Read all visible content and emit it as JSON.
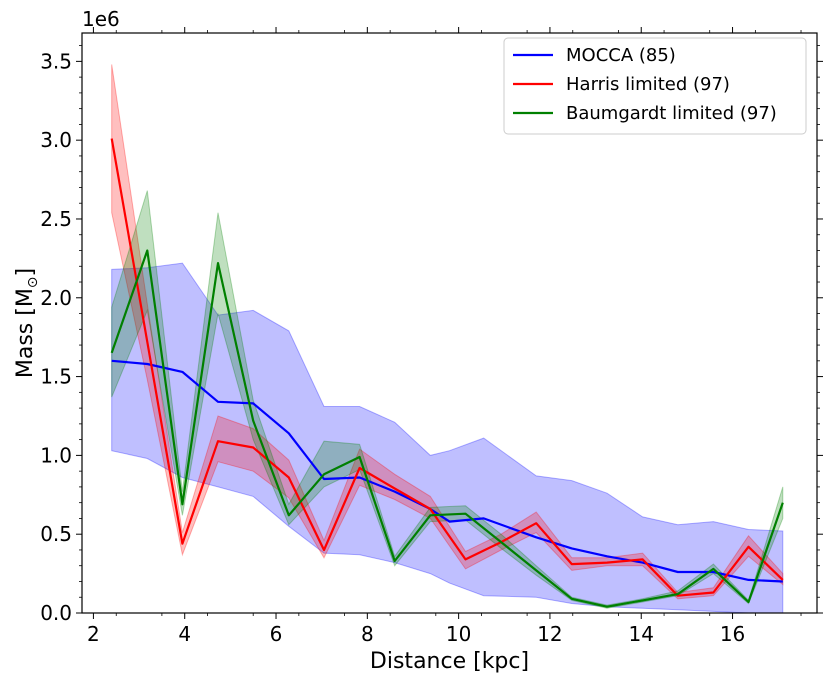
{
  "chart_data": {
    "type": "line",
    "xlabel": "Distance [kpc]",
    "ylabel_main": "Mass [M",
    "ylabel_sub": "⊙",
    "ylabel_close": "]",
    "y_offset_label": "1e6",
    "xlim": [
      1.75,
      17.85
    ],
    "ylim": [
      0,
      3.68
    ],
    "xticks": [
      2,
      4,
      6,
      8,
      10,
      12,
      14,
      16
    ],
    "xtick_labels": [
      "2",
      "4",
      "6",
      "8",
      "10",
      "12",
      "14",
      "16"
    ],
    "yticks": [
      0,
      0.5,
      1.0,
      1.5,
      2.0,
      2.5,
      3.0,
      3.5
    ],
    "ytick_labels": [
      "0.0",
      "0.5",
      "1.0",
      "1.5",
      "2.0",
      "2.5",
      "3.0",
      "3.5"
    ],
    "legend_position": "top-right",
    "series": [
      {
        "name": "MOCCA (85)",
        "color": "#0000ff",
        "band_color": "#0000ff",
        "band_opacity": 0.25,
        "x": [
          2.4,
          3.18,
          3.95,
          4.73,
          5.5,
          6.28,
          7.05,
          7.83,
          8.6,
          9.38,
          9.8,
          10.55,
          11.7,
          12.48,
          13.25,
          14.03,
          14.8,
          15.58,
          16.35,
          17.1
        ],
        "y": [
          1.6,
          1.58,
          1.53,
          1.34,
          1.33,
          1.14,
          0.85,
          0.86,
          0.77,
          0.66,
          0.58,
          0.6,
          0.48,
          0.41,
          0.36,
          0.32,
          0.26,
          0.26,
          0.21,
          0.2
        ],
        "lower": [
          1.03,
          0.98,
          0.86,
          0.8,
          0.74,
          0.55,
          0.38,
          0.37,
          0.32,
          0.25,
          0.19,
          0.11,
          0.1,
          0.06,
          0.04,
          0.03,
          0.02,
          0.01,
          0.0,
          0.0
        ],
        "upper": [
          2.18,
          2.19,
          2.22,
          1.89,
          1.92,
          1.79,
          1.31,
          1.31,
          1.21,
          1.0,
          1.03,
          1.11,
          0.87,
          0.84,
          0.76,
          0.61,
          0.56,
          0.58,
          0.53,
          0.52
        ]
      },
      {
        "name": "Harris limited (97)",
        "color": "#ff0000",
        "band_color": "#ff0000",
        "band_opacity": 0.25,
        "x": [
          2.4,
          3.18,
          3.95,
          4.73,
          5.5,
          6.28,
          7.05,
          7.83,
          8.6,
          9.38,
          10.15,
          10.93,
          11.7,
          12.48,
          13.25,
          14.03,
          14.8,
          15.58,
          16.35,
          17.1
        ],
        "y": [
          3.01,
          1.72,
          0.44,
          1.09,
          1.05,
          0.86,
          0.4,
          0.92,
          0.79,
          0.66,
          0.34,
          0.45,
          0.57,
          0.31,
          0.32,
          0.34,
          0.11,
          0.13,
          0.42,
          0.21
        ],
        "lower": [
          2.54,
          1.48,
          0.37,
          0.96,
          0.9,
          0.73,
          0.35,
          0.81,
          0.72,
          0.6,
          0.28,
          0.4,
          0.51,
          0.27,
          0.3,
          0.3,
          0.09,
          0.11,
          0.36,
          0.18
        ],
        "upper": [
          3.48,
          1.96,
          0.51,
          1.25,
          1.17,
          0.97,
          0.46,
          1.04,
          0.88,
          0.74,
          0.39,
          0.5,
          0.64,
          0.35,
          0.35,
          0.38,
          0.13,
          0.16,
          0.49,
          0.25
        ]
      },
      {
        "name": "Baumgardt limited (97)",
        "color": "#008000",
        "band_color": "#008000",
        "band_opacity": 0.25,
        "x": [
          2.4,
          3.18,
          3.95,
          4.73,
          5.5,
          6.28,
          7.05,
          7.83,
          8.6,
          9.38,
          10.15,
          10.93,
          11.7,
          12.48,
          13.25,
          14.03,
          14.8,
          15.58,
          16.35,
          17.1
        ],
        "y": [
          1.65,
          2.3,
          0.69,
          2.22,
          1.22,
          0.62,
          0.88,
          0.99,
          0.33,
          0.62,
          0.63,
          0.45,
          0.27,
          0.09,
          0.04,
          0.08,
          0.12,
          0.28,
          0.07,
          0.7
        ],
        "lower": [
          1.37,
          1.92,
          0.62,
          1.9,
          1.1,
          0.56,
          0.8,
          0.91,
          0.3,
          0.58,
          0.59,
          0.41,
          0.24,
          0.08,
          0.03,
          0.07,
          0.11,
          0.25,
          0.06,
          0.6
        ],
        "upper": [
          1.94,
          2.68,
          0.77,
          2.54,
          1.35,
          0.69,
          1.09,
          1.07,
          0.36,
          0.67,
          0.68,
          0.5,
          0.3,
          0.1,
          0.05,
          0.09,
          0.14,
          0.31,
          0.08,
          0.8
        ]
      }
    ]
  }
}
